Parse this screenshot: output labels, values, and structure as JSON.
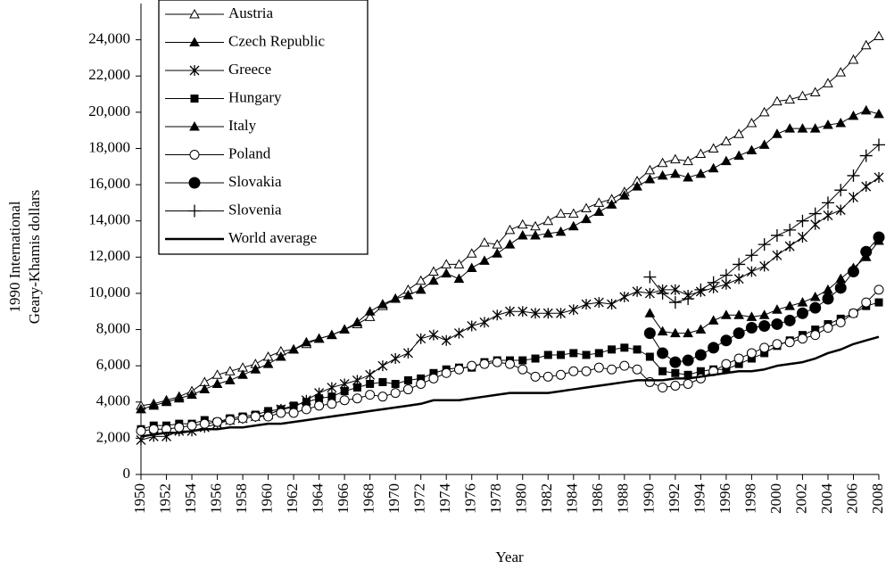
{
  "chart_data": {
    "type": "line",
    "xlabel": "Year",
    "ylabel": [
      "1990 International",
      "Geary-Khamis dollars"
    ],
    "x": [
      1950,
      1951,
      1952,
      1953,
      1954,
      1955,
      1956,
      1957,
      1958,
      1959,
      1960,
      1961,
      1962,
      1963,
      1964,
      1965,
      1966,
      1967,
      1968,
      1969,
      1970,
      1971,
      1972,
      1973,
      1974,
      1975,
      1976,
      1977,
      1978,
      1979,
      1980,
      1981,
      1982,
      1983,
      1984,
      1985,
      1986,
      1987,
      1988,
      1989,
      1990,
      1991,
      1992,
      1993,
      1994,
      1995,
      1996,
      1997,
      1998,
      1999,
      2000,
      2001,
      2002,
      2003,
      2004,
      2005,
      2006,
      2007,
      2008
    ],
    "xlim": [
      1950,
      2008
    ],
    "xticks": [
      1950,
      1952,
      1954,
      1956,
      1958,
      1960,
      1962,
      1964,
      1966,
      1968,
      1970,
      1972,
      1974,
      1976,
      1978,
      1980,
      1982,
      1984,
      1986,
      1988,
      1990,
      1992,
      1994,
      1996,
      1998,
      2000,
      2002,
      2004,
      2006,
      2008
    ],
    "ylim": [
      0,
      26000
    ],
    "yticks": [
      0,
      {
        "value": 2000,
        "label": "2,000"
      },
      {
        "value": 4000,
        "label": "4,000"
      },
      {
        "value": 6000,
        "label": "6,000"
      },
      {
        "value": 8000,
        "label": "8,000"
      },
      {
        "value": 10000,
        "label": "10,000"
      },
      {
        "value": 12000,
        "label": "12,000"
      },
      {
        "value": 14000,
        "label": "14,000"
      },
      {
        "value": 16000,
        "label": "16,000"
      },
      {
        "value": 18000,
        "label": "18,000"
      },
      {
        "value": 20000,
        "label": "20,000"
      },
      {
        "value": 22000,
        "label": "22,000"
      },
      {
        "value": 24000,
        "label": "24,000"
      }
    ],
    "grid": false,
    "legend": "top-left",
    "series": [
      {
        "name": "Austria",
        "color": "#000000",
        "marker": "open-triangle",
        "line_width": 1,
        "values": [
          3800,
          3900,
          4100,
          4300,
          4600,
          5100,
          5500,
          5700,
          5900,
          6100,
          6500,
          6800,
          6900,
          7200,
          7500,
          7700,
          8000,
          8300,
          8700,
          9300,
          9700,
          10200,
          10700,
          11200,
          11600,
          11600,
          12200,
          12800,
          12700,
          13500,
          13800,
          13700,
          14000,
          14400,
          14400,
          14700,
          15000,
          15200,
          15600,
          16200,
          16800,
          17200,
          17400,
          17300,
          17700,
          18000,
          18400,
          18800,
          19400,
          20000,
          20600,
          20700,
          20900,
          21100,
          21600,
          22200,
          22900,
          23700,
          24200
        ]
      },
      {
        "name": "Czech Republic",
        "color": "#000000",
        "marker": "triangle",
        "line_width": 1,
        "values": [
          null,
          null,
          null,
          null,
          null,
          null,
          null,
          null,
          null,
          null,
          null,
          null,
          null,
          null,
          null,
          null,
          null,
          null,
          null,
          null,
          null,
          null,
          null,
          null,
          null,
          null,
          null,
          null,
          null,
          null,
          null,
          null,
          null,
          null,
          null,
          null,
          null,
          null,
          null,
          null,
          8900,
          7900,
          7800,
          7800,
          8000,
          8500,
          8800,
          8800,
          8700,
          8800,
          9100,
          9300,
          9500,
          9800,
          10200,
          10800,
          11400,
          12000,
          12900
        ]
      },
      {
        "name": "Greece",
        "color": "#000000",
        "marker": "star",
        "line_width": 1,
        "values": [
          1900,
          2100,
          2100,
          2400,
          2400,
          2600,
          2800,
          3000,
          3100,
          3200,
          3300,
          3600,
          3700,
          4100,
          4500,
          4800,
          5000,
          5200,
          5500,
          6000,
          6400,
          6700,
          7500,
          7700,
          7400,
          7800,
          8200,
          8400,
          8800,
          9000,
          9000,
          8900,
          8900,
          8900,
          9100,
          9400,
          9500,
          9400,
          9800,
          10100,
          10000,
          10200,
          10200,
          9900,
          10100,
          10300,
          10500,
          10800,
          11200,
          11500,
          12100,
          12600,
          13100,
          13800,
          14300,
          14600,
          15300,
          15900,
          16400
        ]
      },
      {
        "name": "Hungary",
        "color": "#000000",
        "marker": "square",
        "line_width": 1,
        "values": [
          2500,
          2700,
          2700,
          2800,
          2800,
          3000,
          2900,
          3100,
          3200,
          3300,
          3500,
          3600,
          3800,
          4000,
          4200,
          4300,
          4600,
          4800,
          5000,
          5100,
          5000,
          5200,
          5300,
          5600,
          5800,
          5900,
          5900,
          6200,
          6300,
          6300,
          6300,
          6400,
          6600,
          6600,
          6700,
          6600,
          6700,
          6900,
          7000,
          6900,
          6500,
          5700,
          5600,
          5500,
          5700,
          5800,
          5800,
          6100,
          6400,
          6700,
          7100,
          7400,
          7700,
          8000,
          8300,
          8600,
          8900,
          9300,
          9500
        ]
      },
      {
        "name": "Italy",
        "color": "#000000",
        "marker": "triangle",
        "line_width": 1,
        "values": [
          3600,
          3800,
          4000,
          4200,
          4400,
          4700,
          5000,
          5200,
          5500,
          5800,
          6100,
          6500,
          6900,
          7300,
          7500,
          7700,
          8000,
          8400,
          9000,
          9400,
          9700,
          9900,
          10200,
          10700,
          11100,
          10800,
          11400,
          11800,
          12200,
          12700,
          13200,
          13200,
          13300,
          13400,
          13700,
          14100,
          14500,
          14900,
          15400,
          15900,
          16300,
          16500,
          16600,
          16400,
          16600,
          16900,
          17300,
          17600,
          17900,
          18200,
          18800,
          19100,
          19100,
          19100,
          19300,
          19400,
          19800,
          20100,
          19900
        ]
      },
      {
        "name": "Poland",
        "color": "#000000",
        "marker": "open-circle",
        "line_width": 1,
        "values": [
          2400,
          2500,
          2500,
          2600,
          2700,
          2800,
          2900,
          3000,
          3100,
          3200,
          3200,
          3400,
          3400,
          3600,
          3800,
          3900,
          4100,
          4200,
          4400,
          4300,
          4500,
          4700,
          5000,
          5300,
          5600,
          5800,
          6000,
          6100,
          6200,
          6100,
          5800,
          5400,
          5400,
          5500,
          5700,
          5700,
          5900,
          5800,
          6000,
          5800,
          5100,
          4800,
          4900,
          5000,
          5300,
          5700,
          6100,
          6400,
          6700,
          7000,
          7200,
          7300,
          7500,
          7700,
          8100,
          8400,
          8900,
          9500,
          10200
        ]
      },
      {
        "name": "Slovakia",
        "color": "#000000",
        "marker": "circle",
        "line_width": 1,
        "values": [
          null,
          null,
          null,
          null,
          null,
          null,
          null,
          null,
          null,
          null,
          null,
          null,
          null,
          null,
          null,
          null,
          null,
          null,
          null,
          null,
          null,
          null,
          null,
          null,
          null,
          null,
          null,
          null,
          null,
          null,
          null,
          null,
          null,
          null,
          null,
          null,
          null,
          null,
          null,
          null,
          7800,
          6700,
          6200,
          6300,
          6600,
          7000,
          7400,
          7800,
          8100,
          8200,
          8300,
          8500,
          8900,
          9200,
          9700,
          10300,
          11200,
          12300,
          13100
        ]
      },
      {
        "name": "Slovenia",
        "color": "#000000",
        "marker": "plus",
        "line_width": 1,
        "values": [
          null,
          null,
          null,
          null,
          null,
          null,
          null,
          null,
          null,
          null,
          null,
          null,
          null,
          null,
          null,
          null,
          null,
          null,
          null,
          null,
          null,
          null,
          null,
          null,
          null,
          null,
          null,
          null,
          null,
          null,
          null,
          null,
          null,
          null,
          null,
          null,
          null,
          null,
          null,
          null,
          10900,
          10000,
          9500,
          9700,
          10200,
          10600,
          11000,
          11600,
          12100,
          12700,
          13200,
          13500,
          14000,
          14400,
          15000,
          15700,
          16500,
          17600,
          18200
        ]
      },
      {
        "name": "World average",
        "color": "#000000",
        "marker": "none",
        "line_width": 2.5,
        "values": [
          2100,
          2200,
          2300,
          2300,
          2400,
          2500,
          2500,
          2600,
          2600,
          2700,
          2800,
          2800,
          2900,
          3000,
          3100,
          3200,
          3300,
          3400,
          3500,
          3600,
          3700,
          3800,
          3900,
          4100,
          4100,
          4100,
          4200,
          4300,
          4400,
          4500,
          4500,
          4500,
          4500,
          4600,
          4700,
          4800,
          4900,
          5000,
          5100,
          5200,
          5200,
          5200,
          5300,
          5300,
          5400,
          5500,
          5600,
          5700,
          5700,
          5800,
          6000,
          6100,
          6200,
          6400,
          6700,
          6900,
          7200,
          7400,
          7600
        ]
      }
    ]
  }
}
